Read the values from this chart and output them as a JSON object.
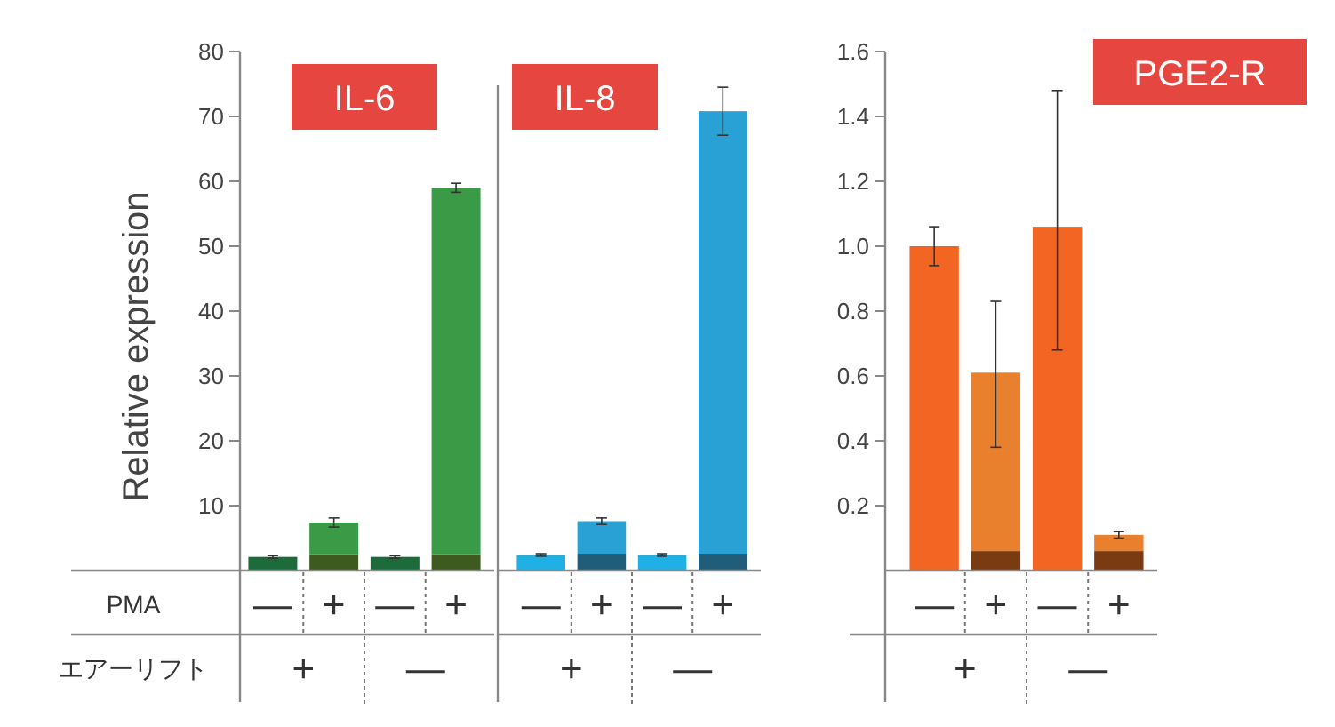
{
  "chart_data": [
    {
      "type": "bar",
      "title": "IL-6",
      "ylabel": "Relative expression",
      "stacked": true,
      "categories": [
        "—",
        "+",
        "—",
        "+"
      ],
      "ylim": [
        0,
        80
      ],
      "yticks": [
        10,
        20,
        30,
        40,
        50,
        60,
        70,
        80
      ],
      "tick_labels": true,
      "series": [
        {
          "colors": [
            "#1d6b3b",
            "#3d5a1f",
            "#1d6b3b",
            "#3d5a1f"
          ],
          "values": [
            2.1,
            2.5,
            2.1,
            2.5
          ],
          "errors": [
            0.2,
            null,
            0.2,
            null
          ]
        },
        {
          "color": "#3a9a46",
          "values": [
            null,
            4.9,
            null,
            56.5
          ],
          "errors": [
            null,
            0.7,
            null,
            0.7
          ]
        }
      ],
      "annotations": [
        "PMA",
        "エアーリフト",
        "+",
        "—"
      ]
    },
    {
      "type": "bar",
      "title": "IL-8",
      "stacked": true,
      "categories": [
        "—",
        "+",
        "—",
        "+"
      ],
      "ylim": [
        0,
        80
      ],
      "tick_labels": "x",
      "series": [
        {
          "colors": [
            "#1fb0e6",
            "#1f5d7a",
            "#1fb0e6",
            "#1f5d7a"
          ],
          "values": [
            2.4,
            2.6,
            2.4,
            2.6
          ],
          "errors": [
            0.2,
            null,
            0.2,
            null
          ]
        },
        {
          "color": "#2aa1d4",
          "values": [
            null,
            5.0,
            null,
            68.2
          ],
          "errors": [
            null,
            0.5,
            null,
            3.7
          ]
        }
      ],
      "annotations": [
        "+",
        "—"
      ]
    },
    {
      "type": "bar",
      "title": "PGE2-R",
      "stacked": true,
      "categories": [
        "—",
        "+",
        "—",
        "+"
      ],
      "ylim": [
        0,
        1.6
      ],
      "yticks": [
        0.2,
        0.4,
        0.6,
        0.8,
        {
          "value": 1,
          "label": "1.0"
        },
        1.2,
        1.4,
        1.6
      ],
      "tick_labels": true,
      "series": [
        {
          "colors": [
            "#f26522",
            "#7a3a12",
            "#f26522",
            "#7a3a12"
          ],
          "values": [
            1.0,
            0.06,
            1.06,
            0.06
          ],
          "errors": [
            0.06,
            null,
            [
              0.68,
              1.48
            ],
            null
          ]
        },
        {
          "color": "#e8802e",
          "values": [
            null,
            0.55,
            null,
            0.05
          ],
          "errors": [
            null,
            [
              0.38,
              0.83
            ],
            null,
            0.01
          ]
        }
      ],
      "annotations": [
        "+",
        "—"
      ]
    }
  ]
}
